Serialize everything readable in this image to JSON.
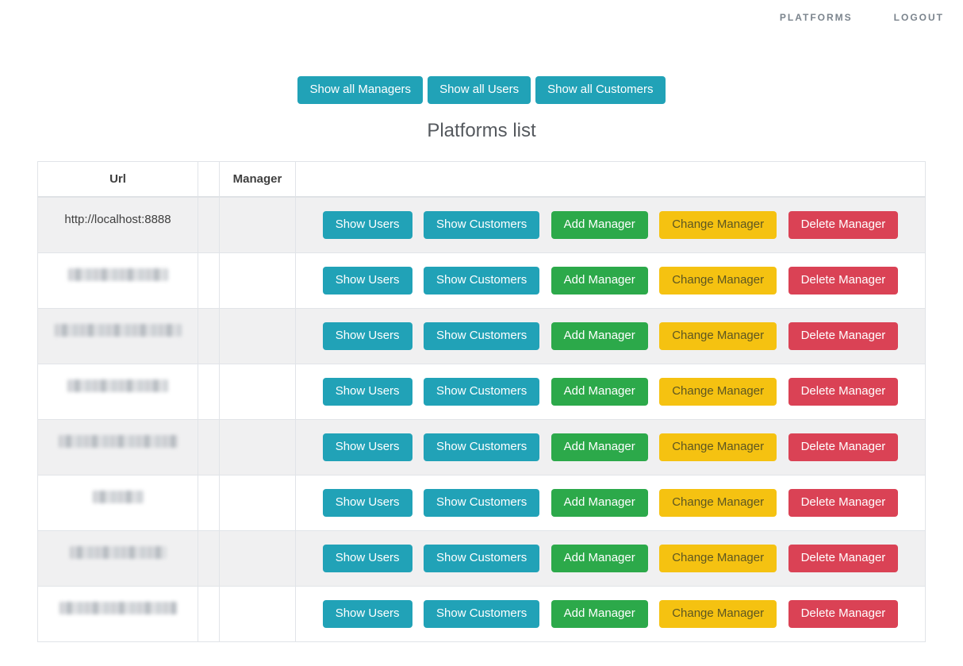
{
  "nav": {
    "platforms_label": "PLATFORMS",
    "logout_label": "LOGOUT"
  },
  "toolbar": {
    "buttons": [
      "Show all Managers",
      "Show all Users",
      "Show all Customers"
    ]
  },
  "page": {
    "title": "Platforms list"
  },
  "table": {
    "headers": {
      "url": "Url",
      "id": "",
      "manager": "Manager",
      "actions": ""
    },
    "actions": {
      "show_users": "Show Users",
      "show_customers": "Show Customers",
      "add_manager": "Add Manager",
      "change_manager": "Change Manager",
      "delete_manager": "Delete Manager"
    },
    "rows": [
      {
        "url": "http://localhost:8888",
        "manager": "",
        "url_redacted": false
      },
      {
        "url": "",
        "manager": "",
        "url_redacted": true
      },
      {
        "url": "",
        "manager": "",
        "url_redacted": true
      },
      {
        "url": "",
        "manager": "",
        "url_redacted": true
      },
      {
        "url": "",
        "manager": "",
        "url_redacted": true
      },
      {
        "url": "",
        "manager": "",
        "url_redacted": true
      },
      {
        "url": "",
        "manager": "",
        "url_redacted": true
      },
      {
        "url": "",
        "manager": "",
        "url_redacted": true
      }
    ]
  },
  "colors": {
    "teal": "#21a2b7",
    "green": "#2ca94a",
    "yellow": "#f5c211",
    "red": "#da4255",
    "row_stripe": "#f0f0f1",
    "border": "#e1e4e8",
    "nav_text": "#7b848d",
    "title_text": "#55595e"
  }
}
